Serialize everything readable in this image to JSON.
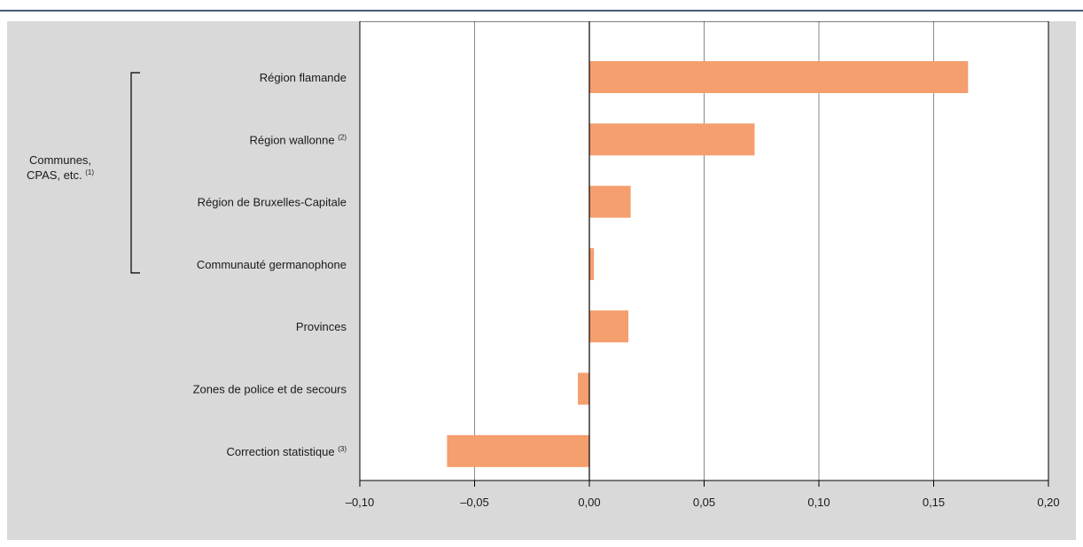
{
  "colors": {
    "panel_bg": "#d9d9d9",
    "plot_bg": "#ffffff",
    "bar": "#f59e6e",
    "grid": "#8a8a8a",
    "axis": "#000000",
    "top_rule": "#4a5a7a"
  },
  "group_bracket": {
    "label_lines": [
      "Communes,",
      "CPAS, etc."
    ],
    "label_note": "(1)",
    "spans_categories": [
      0,
      3
    ]
  },
  "chart_data": {
    "type": "bar",
    "orientation": "horizontal",
    "categories": [
      {
        "label": "Région flamande",
        "note": ""
      },
      {
        "label": "Région wallonne",
        "note": "(2)"
      },
      {
        "label": "Région de Bruxelles-Capitale",
        "note": ""
      },
      {
        "label": "Communauté germanophone",
        "note": ""
      },
      {
        "label": "Provinces",
        "note": ""
      },
      {
        "label": "Zones de police et de secours",
        "note": ""
      },
      {
        "label": "Correction statistique",
        "note": "(3)"
      }
    ],
    "values": [
      0.165,
      0.072,
      0.018,
      0.002,
      0.017,
      -0.005,
      -0.062
    ],
    "xlim": [
      -0.1,
      0.2
    ],
    "xticks": [
      -0.1,
      -0.05,
      0.0,
      0.05,
      0.1,
      0.15,
      0.2
    ],
    "xtick_labels": [
      "–0,10",
      "–0,05",
      "0,00",
      "0,05",
      "0,10",
      "0,15",
      "0,20"
    ],
    "grid": "vertical",
    "legend": "none",
    "title": "",
    "xlabel": "",
    "ylabel": ""
  }
}
